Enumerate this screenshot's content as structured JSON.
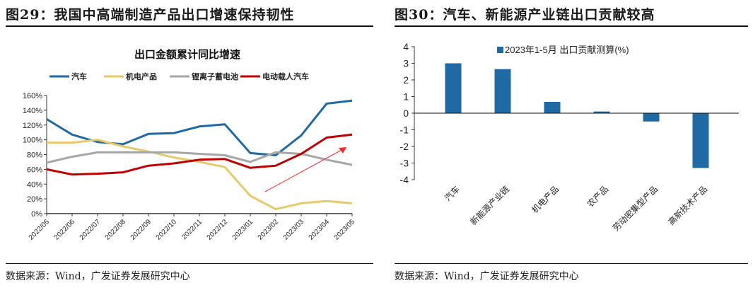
{
  "left": {
    "figure_title": "图29：我国中高端制造产品出口增速保持韧性",
    "source": "数据来源：Wind，广发证券发展研究中心"
  },
  "right": {
    "figure_title": "图30：汽车、新能源产业链出口贡献较高",
    "source": "数据来源：Wind，广发证券发展研究中心"
  },
  "colors": {
    "blue": "#1f6aa5",
    "yellow": "#e8c96a",
    "gray": "#a6a6a6",
    "red": "#c00000",
    "bar": "#1f6aa5",
    "arrow": "#ff2a2a"
  },
  "chart_data": [
    {
      "type": "line",
      "title": "出口金额累计同比增速",
      "xlabel": "",
      "ylabel": "",
      "x": [
        "2022/05",
        "2022/06",
        "2022/07",
        "2022/08",
        "2022/09",
        "2022/10",
        "2022/11",
        "2022/12",
        "2023/01",
        "2023/02",
        "2023/03",
        "2023/04",
        "2023/05"
      ],
      "ylim": [
        0,
        160
      ],
      "yticks": [
        "0%",
        "20%",
        "40%",
        "60%",
        "80%",
        "100%",
        "120%",
        "140%",
        "160%"
      ],
      "legend_position": "top",
      "grid": false,
      "annotation": "red upward arrow from 2023/01–02 toward 2023/05",
      "series": [
        {
          "name": "汽车",
          "color_key": "blue",
          "values": [
            128,
            107,
            97,
            94,
            108,
            109,
            118,
            121,
            82,
            79,
            106,
            149,
            153
          ]
        },
        {
          "name": "机电产品",
          "color_key": "yellow",
          "values": [
            96,
            96,
            100,
            91,
            84,
            76,
            70,
            63,
            24,
            6,
            14,
            17,
            14
          ]
        },
        {
          "name": "锂离子蓄电池",
          "color_key": "gray",
          "values": [
            69,
            77,
            83,
            83,
            83,
            83,
            81,
            79,
            70,
            83,
            81,
            73,
            66
          ]
        },
        {
          "name": "电动载人汽车",
          "color_key": "red",
          "values": [
            60,
            53,
            54,
            56,
            65,
            68,
            73,
            74,
            62,
            65,
            81,
            103,
            107
          ]
        }
      ]
    },
    {
      "type": "bar",
      "title": "",
      "xlabel": "",
      "ylabel": "",
      "categories": [
        "汽车",
        "新能源产业链",
        "机电产品",
        "农产品",
        "劳动密集型产品",
        "高新技术产品"
      ],
      "values": [
        3.0,
        2.65,
        0.68,
        0.1,
        -0.5,
        -3.3
      ],
      "ylim": [
        -4,
        4
      ],
      "yticks": [
        "-4",
        "-3",
        "-2",
        "-1",
        "0",
        "1",
        "2",
        "3",
        "4"
      ],
      "legend_position": "top",
      "grid": false,
      "series": [
        {
          "name": "2023年1-5月 出口贡献测算(%)",
          "values": [
            3.0,
            2.65,
            0.68,
            0.1,
            -0.5,
            -3.3
          ]
        }
      ]
    }
  ]
}
